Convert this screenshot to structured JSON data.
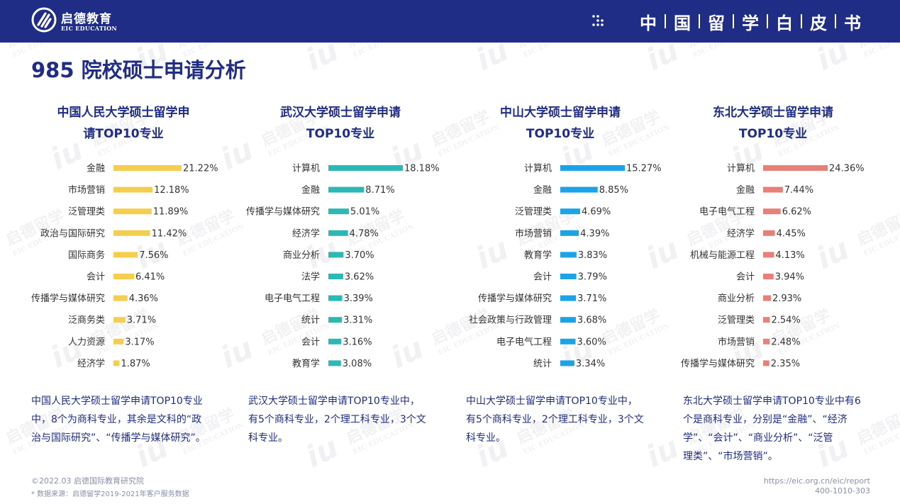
{
  "header": {
    "logo_cn": "启德教育",
    "logo_en": "EIC EDUCATION",
    "banner_chars": [
      "中",
      "国",
      "留",
      "学",
      "白",
      "皮",
      "书"
    ]
  },
  "watermark": {
    "cn": "启德留学",
    "en": "EIC EDUCATION"
  },
  "page_title": "985 院校硕士申请分析",
  "colors": {
    "brand": "#1f2d86",
    "bar_renmin": "#f5ce4f",
    "bar_wuhan": "#2cb8b5",
    "bar_zhongshan": "#1aa3e6",
    "bar_dongbei": "#e8807a"
  },
  "chart_data": [
    {
      "type": "bar",
      "orientation": "horizontal",
      "title_line1": "中国人民大学硕士留学申",
      "title_line2": "请TOP10专业",
      "categories": [
        "金融",
        "市场营销",
        "泛管理类",
        "政治与国际研究",
        "国际商务",
        "会计",
        "传播学与媒体研究",
        "泛商务类",
        "人力资源",
        "经济学"
      ],
      "values": [
        21.22,
        12.18,
        11.89,
        11.42,
        7.56,
        6.41,
        4.36,
        3.71,
        3.17,
        1.87
      ],
      "labels": [
        "21.22%",
        "12.18%",
        "11.89%",
        "11.42%",
        "7.56%",
        "6.41%",
        "4.36%",
        "3.71%",
        "3.17%",
        "1.87%"
      ]
    },
    {
      "type": "bar",
      "orientation": "horizontal",
      "title_line1": "武汉大学硕士留学申请",
      "title_line2": "TOP10专业",
      "categories": [
        "计算机",
        "金融",
        "传播学与媒体研究",
        "经济学",
        "商业分析",
        "法学",
        "电子电气工程",
        "统计",
        "会计",
        "教育学"
      ],
      "values": [
        18.18,
        8.71,
        5.01,
        4.78,
        3.7,
        3.62,
        3.39,
        3.31,
        3.16,
        3.08
      ],
      "labels": [
        "18.18%",
        "8.71%",
        "5.01%",
        "4.78%",
        "3.70%",
        "3.62%",
        "3.39%",
        "3.31%",
        "3.16%",
        "3.08%"
      ]
    },
    {
      "type": "bar",
      "orientation": "horizontal",
      "title_line1": "中山大学硕士留学申请",
      "title_line2": "TOP10专业",
      "categories": [
        "计算机",
        "金融",
        "泛管理类",
        "市场营销",
        "教育学",
        "会计",
        "传播学与媒体研究",
        "社会政策与行政管理",
        "电子电气工程",
        "统计"
      ],
      "values": [
        15.27,
        8.85,
        4.69,
        4.39,
        3.83,
        3.79,
        3.71,
        3.68,
        3.6,
        3.34
      ],
      "labels": [
        "15.27%",
        "8.85%",
        "4.69%",
        "4.39%",
        "3.83%",
        "3.79%",
        "3.71%",
        "3.68%",
        "3.60%",
        "3.34%"
      ]
    },
    {
      "type": "bar",
      "orientation": "horizontal",
      "title_line1": "东北大学硕士留学申请",
      "title_line2": "TOP10专业",
      "categories": [
        "计算机",
        "金融",
        "电子电气工程",
        "经济学",
        "机械与能源工程",
        "会计",
        "商业分析",
        "泛管理类",
        "市场营销",
        "传播学与媒体研究"
      ],
      "values": [
        24.36,
        7.44,
        6.62,
        4.45,
        4.13,
        3.94,
        2.93,
        2.54,
        2.48,
        2.35
      ],
      "labels": [
        "24.36%",
        "7.44%",
        "6.62%",
        "4.45%",
        "4.13%",
        "3.94%",
        "2.93%",
        "2.54%",
        "2.48%",
        "2.35%"
      ]
    }
  ],
  "descriptions": [
    [
      "中国人民大学硕士留学申请TOP10专业",
      "中，8个为商科专业，其余是文科的“政",
      "治与国际研究”、“传播学与媒体研究”。"
    ],
    [
      "武汉大学硕士留学申请TOP10专业中，",
      "有5个商科专业，2个理工科专业，3个文",
      "科专业。"
    ],
    [
      "中山大学硕士留学申请TOP10专业中，",
      "有5个商科专业，2个理工科专业，3个文",
      "科专业。"
    ],
    [
      "东北大学硕士留学申请TOP10专业中有6",
      "个是商科专业，分别是“金融”、“经济",
      "学”、“会计”、“商业分析”、“泛管",
      "理类”、“市场营销”。"
    ]
  ],
  "footer": {
    "copyright": "©2022.03 启德国际教育研究院",
    "source_note": "* 数据来源：启德留学2019-2021年客户服务数据",
    "url": "https://eic.org.cn/eic/report",
    "phone": "400-1010-303"
  }
}
